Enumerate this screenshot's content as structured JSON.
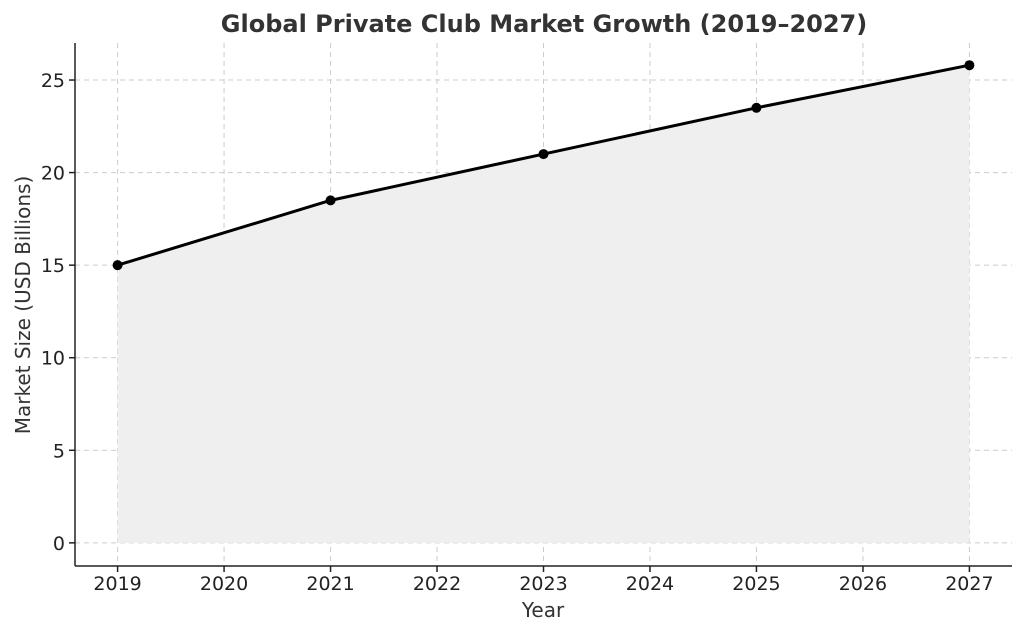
{
  "chart_data": {
    "type": "area",
    "title": "Global Private Club Market Growth (2019–2027)",
    "xlabel": "Year",
    "ylabel": "Market Size (USD Billions)",
    "x": [
      2019,
      2021,
      2023,
      2025,
      2027
    ],
    "series": [
      {
        "values": [
          15.0,
          18.5,
          21.0,
          23.5,
          25.8
        ]
      }
    ],
    "xticks": [
      "2019",
      "2020",
      "2021",
      "2022",
      "2023",
      "2024",
      "2025",
      "2026",
      "2027"
    ],
    "yticks": [
      "0",
      "5",
      "10",
      "15",
      "20",
      "25"
    ],
    "xlim": [
      2018.6,
      2027.4
    ],
    "ylim": [
      -1.25,
      27.0
    ],
    "grid": true,
    "line_color": "#000000",
    "fill_color": "#efefef"
  }
}
